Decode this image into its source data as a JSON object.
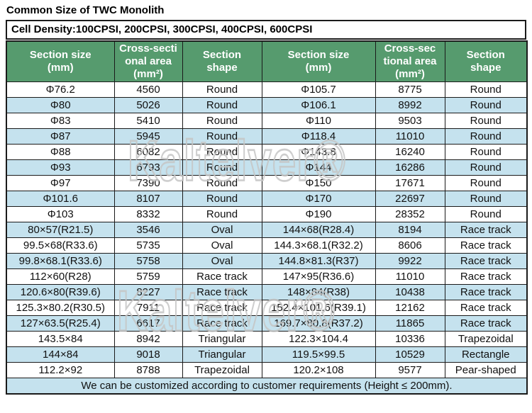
{
  "page": {
    "title": "Common Size of TWC Monolith",
    "cell_density_note": "Cell Density:100CPSI, 200CPSI, 300CPSI, 400CPSI, 600CPSI",
    "footer_note": "We can be customized according to customer requirements (Height ≤ 200mm)."
  },
  "watermark": {
    "text": "Kaltelver®"
  },
  "colors": {
    "header_bg": "#569b6e",
    "alt_row_bg": "#c5e2ee",
    "border": "#1a1a1a",
    "header_text": "#ffffff"
  },
  "table": {
    "headers": [
      [
        "Section size",
        "(mm)"
      ],
      [
        "Cross-secti",
        "onal area",
        "(mm²)"
      ],
      [
        "Section",
        "shape"
      ],
      [
        "Section size",
        "(mm)"
      ],
      [
        "Cross-sec",
        "tional area",
        "(mm²)"
      ],
      [
        "Section",
        "shape"
      ]
    ],
    "rows": [
      [
        "Φ76.2",
        "4560",
        "Round",
        "Φ105.7",
        "8775",
        "Round"
      ],
      [
        "Φ80",
        "5026",
        "Round",
        "Φ106.1",
        "8992",
        "Round"
      ],
      [
        "Φ83",
        "5410",
        "Round",
        "Φ110",
        "9503",
        "Round"
      ],
      [
        "Φ87",
        "5945",
        "Round",
        "Φ118.4",
        "11010",
        "Round"
      ],
      [
        "Φ88",
        "6082",
        "Round",
        "Φ143.8",
        "16240",
        "Round"
      ],
      [
        "Φ93",
        "6793",
        "Round",
        "Φ144",
        "16286",
        "Round"
      ],
      [
        "Φ97",
        "7390",
        "Round",
        "Φ150",
        "17671",
        "Round"
      ],
      [
        "Φ101.6",
        "8107",
        "Round",
        "Φ170",
        "22697",
        "Round"
      ],
      [
        "Φ103",
        "8332",
        "Round",
        "Φ190",
        "28352",
        "Round"
      ],
      [
        "80×57(R21.5)",
        "3546",
        "Oval",
        "144×68(R28.4)",
        "8194",
        "Race track"
      ],
      [
        "99.5×68(R33.6)",
        "5735",
        "Oval",
        "144.3×68.1(R32.2)",
        "8606",
        "Race track"
      ],
      [
        "99.8×68.1(R33.6)",
        "5758",
        "Oval",
        "144.8×81.3(R37)",
        "9922",
        "Race track"
      ],
      [
        "112×60(R28)",
        "5759",
        "Race track",
        "147×95(R36.6)",
        "11010",
        "Race track"
      ],
      [
        "120.6×80(R39.6)",
        "8227",
        "Race track",
        "148×84(R38)",
        "10438",
        "Race track"
      ],
      [
        "125.3×80.2(R30.5)",
        "7911",
        "Race track",
        "152.4×101.6(R39.1)",
        "12162",
        "Race track"
      ],
      [
        "127×63.5(R25.4)",
        "6617",
        "Race track",
        "169.7×80.8(R37.2)",
        "11865",
        "Race track"
      ],
      [
        "143.5×84",
        "8942",
        "Triangular",
        "122.3×104.4",
        "10336",
        "Trapezoidal"
      ],
      [
        "144×84",
        "9018",
        "Triangular",
        "119.5×99.5",
        "10529",
        "Rectangle"
      ],
      [
        "112.2×92",
        "8788",
        "Trapezoidal",
        "120.2×108",
        "9577",
        "Pear-shaped"
      ]
    ]
  }
}
